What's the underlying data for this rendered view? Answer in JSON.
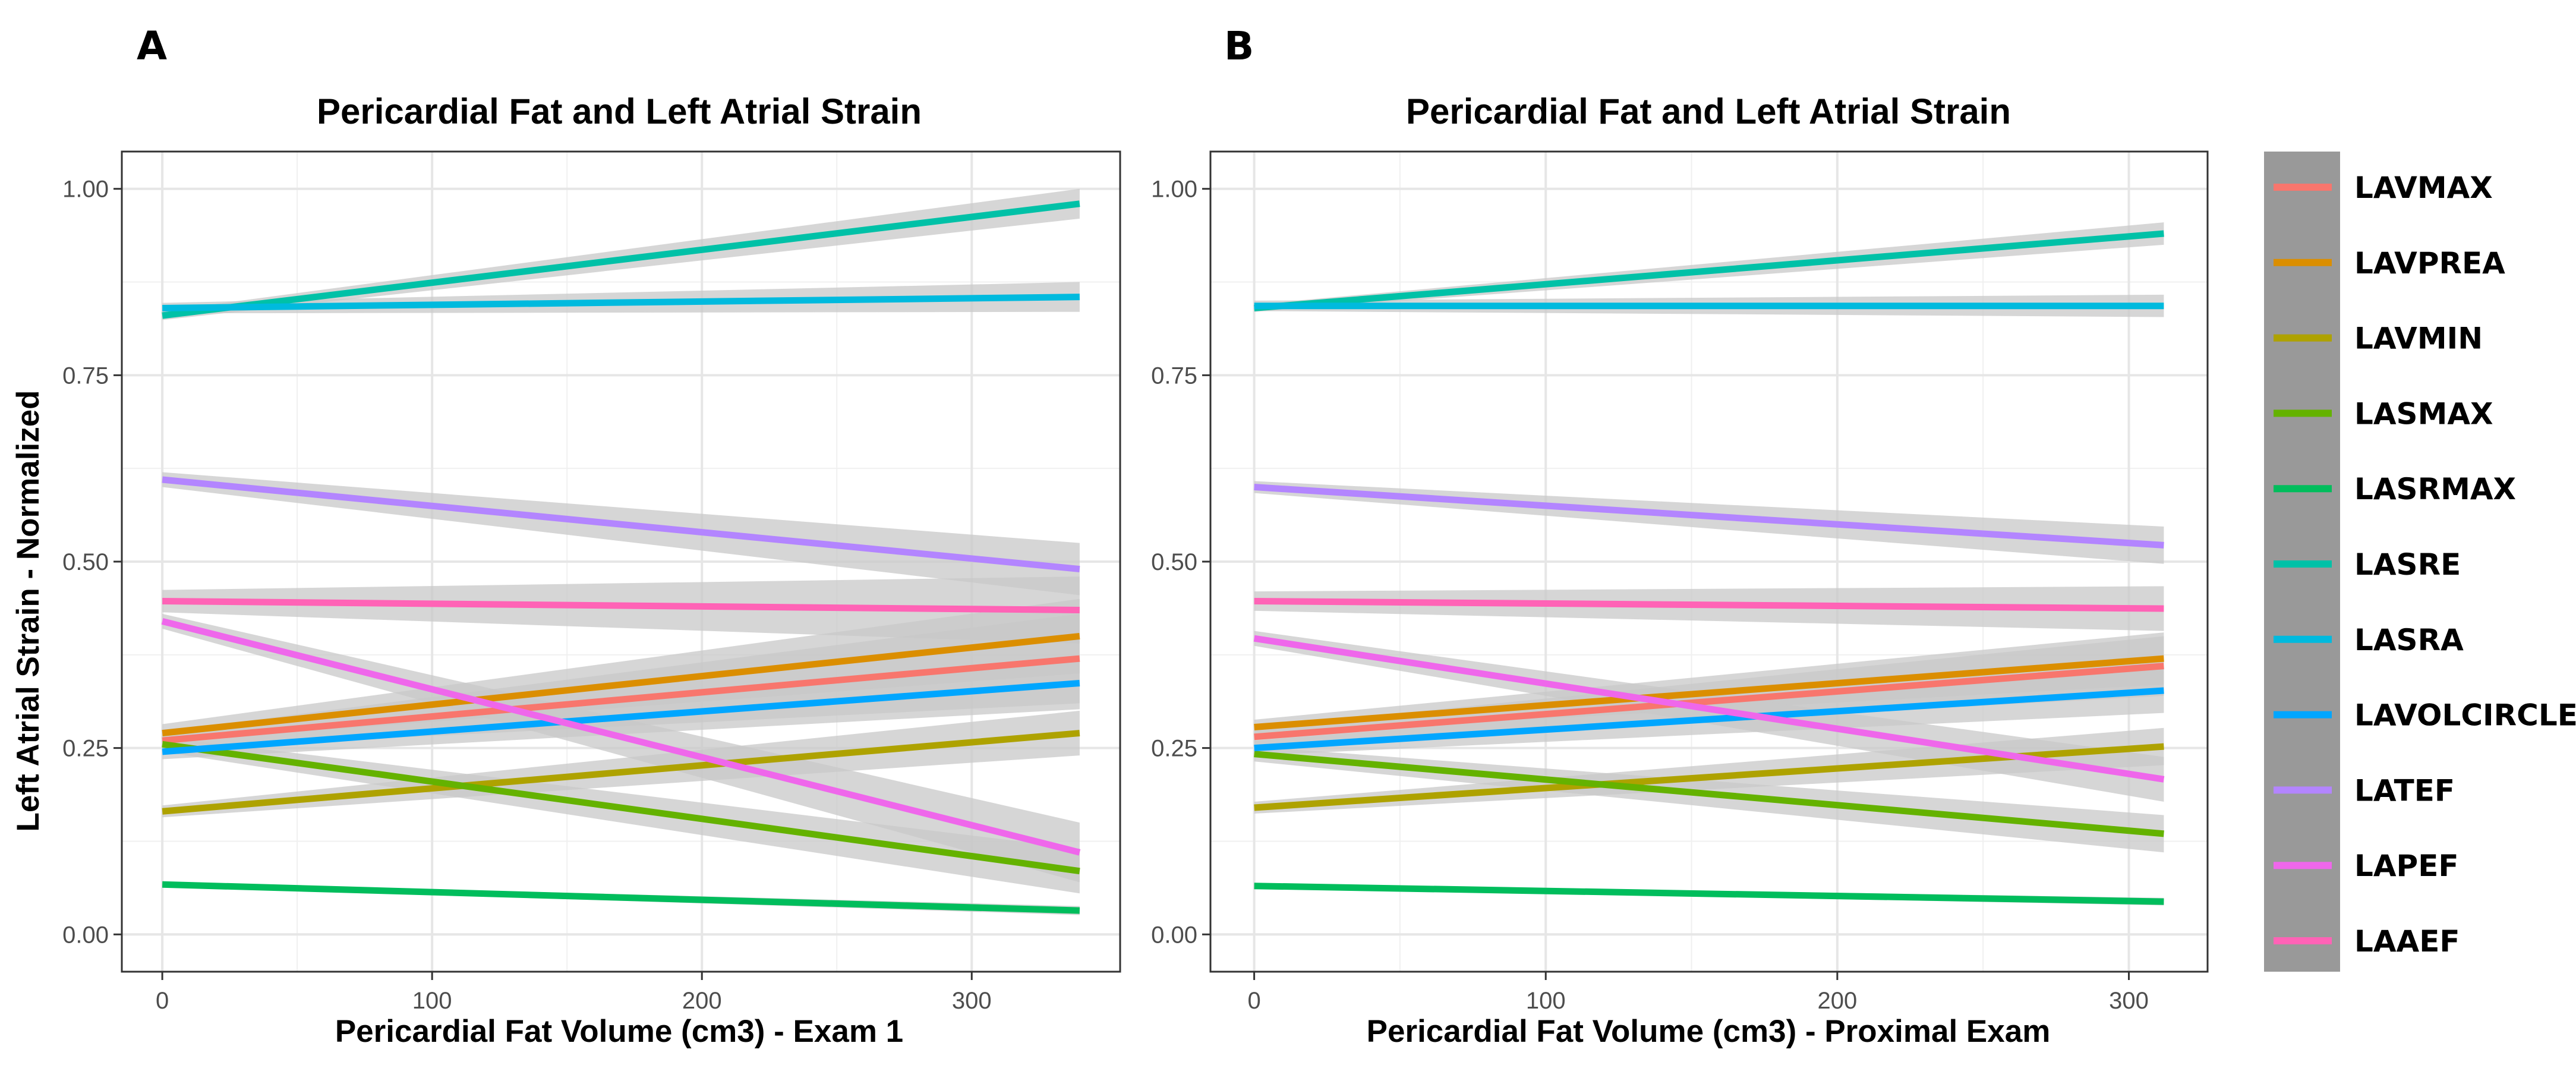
{
  "figure": {
    "panels": [
      {
        "letter": "A",
        "title": "Pericardial Fat and Left Atrial Strain",
        "xlabel": "Pericardial Fat Volume (cm3) - Exam 1"
      },
      {
        "letter": "B",
        "title": "Pericardial Fat and Left Atrial Strain",
        "xlabel": "Pericardial Fat Volume (cm3) - Proximal Exam"
      }
    ],
    "ylabel": "Left Atrial Strain - Normalized"
  },
  "legend": {
    "position": "right",
    "background": "#999999",
    "entries": [
      "LAVMAX",
      "LAVPREA",
      "LAVMIN",
      "LASMAX",
      "LASRMAX",
      "LASRE",
      "LASRA",
      "LAVOLCIRCLE",
      "LATEF",
      "LAPEF",
      "LAAEF"
    ]
  },
  "colors": {
    "LAVMAX": "#F8766D",
    "LAVPREA": "#DB8E00",
    "LAVMIN": "#AEA200",
    "LASMAX": "#64B200",
    "LASRMAX": "#00BD5C",
    "LASRE": "#00C1A7",
    "LASRA": "#00BADE",
    "LAVOLCIRCLE": "#00A6FF",
    "LATEF": "#B385FF",
    "LAPEF": "#EF67EB",
    "LAAEF": "#FF63B6",
    "ci_band": "#c8c8c8"
  },
  "chart_data": [
    {
      "type": "line",
      "title": "Pericardial Fat and Left Atrial Strain",
      "xlabel": "Pericardial Fat Volume (cm3) - Exam 1",
      "ylabel": "Left Atrial Strain - Normalized",
      "xlim": [
        -15,
        355
      ],
      "ylim": [
        -0.05,
        1.05
      ],
      "xticks": [
        0,
        100,
        200,
        300
      ],
      "yticks": [
        0.0,
        0.25,
        0.5,
        0.75,
        1.0
      ],
      "ytick_labels": [
        "0.00",
        "0.25",
        "0.50",
        "0.75",
        "1.00"
      ],
      "grid": true,
      "series": [
        {
          "name": "LAVMAX",
          "x": [
            0,
            340
          ],
          "y": [
            0.26,
            0.37
          ],
          "ci": [
            0.012,
            0.06
          ]
        },
        {
          "name": "LAVPREA",
          "x": [
            0,
            340
          ],
          "y": [
            0.27,
            0.4
          ],
          "ci": [
            0.012,
            0.05
          ]
        },
        {
          "name": "LAVMIN",
          "x": [
            0,
            340
          ],
          "y": [
            0.165,
            0.27
          ],
          "ci": [
            0.008,
            0.03
          ]
        },
        {
          "name": "LASMAX",
          "x": [
            0,
            340
          ],
          "y": [
            0.255,
            0.085
          ],
          "ci": [
            0.01,
            0.03
          ]
        },
        {
          "name": "LASRMAX",
          "x": [
            0,
            340
          ],
          "y": [
            0.067,
            0.032
          ],
          "ci": [
            0.003,
            0.006
          ]
        },
        {
          "name": "LASRE",
          "x": [
            0,
            340
          ],
          "y": [
            0.83,
            0.98
          ],
          "ci": [
            0.006,
            0.02
          ]
        },
        {
          "name": "LASRA",
          "x": [
            0,
            340
          ],
          "y": [
            0.84,
            0.855
          ],
          "ci": [
            0.007,
            0.02
          ]
        },
        {
          "name": "LAVOLCIRCLE",
          "x": [
            0,
            340
          ],
          "y": [
            0.245,
            0.337
          ],
          "ci": [
            0.01,
            0.035
          ]
        },
        {
          "name": "LATEF",
          "x": [
            0,
            340
          ],
          "y": [
            0.61,
            0.49
          ],
          "ci": [
            0.01,
            0.035
          ]
        },
        {
          "name": "LAPEF",
          "x": [
            0,
            340
          ],
          "y": [
            0.42,
            0.11
          ],
          "ci": [
            0.01,
            0.04
          ]
        },
        {
          "name": "LAAEF",
          "x": [
            0,
            340
          ],
          "y": [
            0.447,
            0.435
          ],
          "ci": [
            0.015,
            0.045
          ]
        }
      ]
    },
    {
      "type": "line",
      "title": "Pericardial Fat and Left Atrial Strain",
      "xlabel": "Pericardial Fat Volume (cm3) - Proximal Exam",
      "ylabel": "Left Atrial Strain - Normalized",
      "xlim": [
        -15,
        327
      ],
      "ylim": [
        -0.05,
        1.05
      ],
      "xticks": [
        0,
        100,
        200,
        300
      ],
      "yticks": [
        0.0,
        0.25,
        0.5,
        0.75,
        1.0
      ],
      "ytick_labels": [
        "0.00",
        "0.25",
        "0.50",
        "0.75",
        "1.00"
      ],
      "grid": true,
      "series": [
        {
          "name": "LAVMAX",
          "x": [
            0,
            312
          ],
          "y": [
            0.265,
            0.36
          ],
          "ci": [
            0.012,
            0.04
          ]
        },
        {
          "name": "LAVPREA",
          "x": [
            0,
            312
          ],
          "y": [
            0.278,
            0.37
          ],
          "ci": [
            0.01,
            0.035
          ]
        },
        {
          "name": "LAVMIN",
          "x": [
            0,
            312
          ],
          "y": [
            0.17,
            0.252
          ],
          "ci": [
            0.008,
            0.025
          ]
        },
        {
          "name": "LASMAX",
          "x": [
            0,
            312
          ],
          "y": [
            0.242,
            0.135
          ],
          "ci": [
            0.01,
            0.025
          ]
        },
        {
          "name": "LASRMAX",
          "x": [
            0,
            312
          ],
          "y": [
            0.065,
            0.044
          ],
          "ci": [
            0.003,
            0.005
          ]
        },
        {
          "name": "LASRE",
          "x": [
            0,
            312
          ],
          "y": [
            0.84,
            0.94
          ],
          "ci": [
            0.005,
            0.015
          ]
        },
        {
          "name": "LASRA",
          "x": [
            0,
            312
          ],
          "y": [
            0.843,
            0.843
          ],
          "ci": [
            0.007,
            0.015
          ]
        },
        {
          "name": "LAVOLCIRCLE",
          "x": [
            0,
            312
          ],
          "y": [
            0.25,
            0.327
          ],
          "ci": [
            0.01,
            0.03
          ]
        },
        {
          "name": "LATEF",
          "x": [
            0,
            312
          ],
          "y": [
            0.6,
            0.522
          ],
          "ci": [
            0.008,
            0.025
          ]
        },
        {
          "name": "LAPEF",
          "x": [
            0,
            312
          ],
          "y": [
            0.397,
            0.208
          ],
          "ci": [
            0.01,
            0.03
          ]
        },
        {
          "name": "LAAEF",
          "x": [
            0,
            312
          ],
          "y": [
            0.447,
            0.437
          ],
          "ci": [
            0.013,
            0.03
          ]
        }
      ]
    }
  ]
}
